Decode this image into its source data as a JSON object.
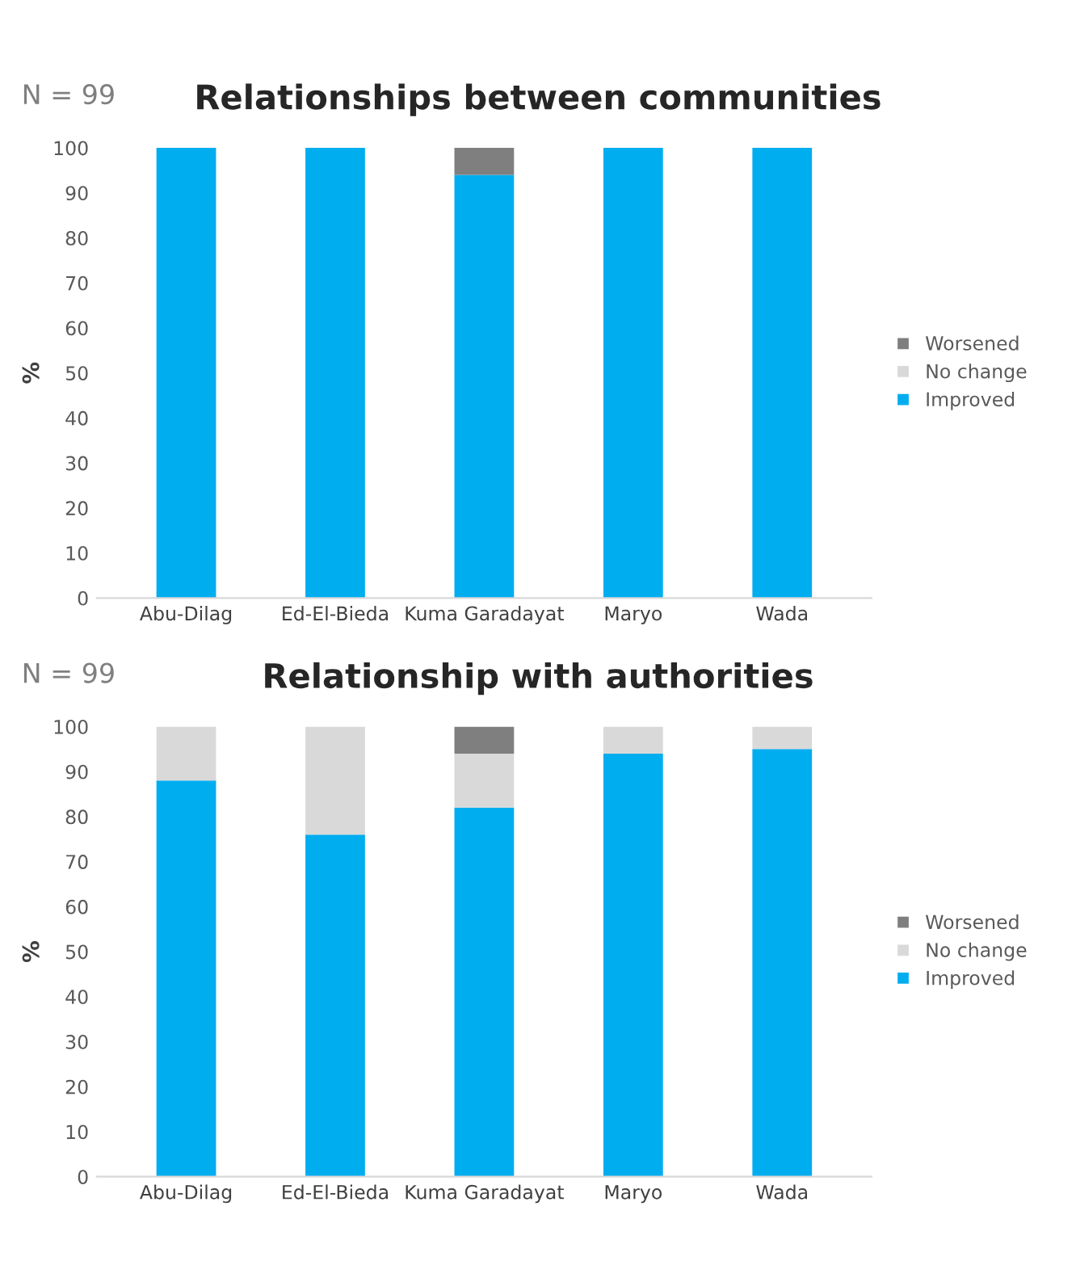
{
  "chart_data": [
    {
      "type": "bar",
      "title": "Relationships between communities",
      "ylabel": "%",
      "annotations": [
        "N = 99"
      ],
      "stacked": true,
      "legend": "right",
      "grid": false,
      "categories": [
        "Abu-Dilag",
        "Ed-El-Bieda",
        "Kuma Garadayat",
        "Maryo",
        "Wada"
      ],
      "ylim": [
        0,
        100
      ],
      "yticks": [
        0,
        10,
        20,
        30,
        40,
        50,
        60,
        70,
        80,
        90,
        100
      ],
      "series": [
        {
          "name": "Improved",
          "color": "#00adef",
          "values": [
            100,
            100,
            94,
            100,
            100
          ]
        },
        {
          "name": "No change",
          "color": "#d9d9d9",
          "values": [
            0,
            0,
            0,
            0,
            0
          ]
        },
        {
          "name": "Worsened",
          "color": "#7f7f7f",
          "values": [
            0,
            0,
            6,
            0,
            0
          ]
        }
      ]
    },
    {
      "type": "bar",
      "title": "Relationship with authorities",
      "ylabel": "%",
      "annotations": [
        "N = 99"
      ],
      "stacked": true,
      "legend": "right",
      "grid": false,
      "categories": [
        "Abu-Dilag",
        "Ed-El-Bieda",
        "Kuma Garadayat",
        "Maryo",
        "Wada"
      ],
      "ylim": [
        0,
        100
      ],
      "yticks": [
        0,
        10,
        20,
        30,
        40,
        50,
        60,
        70,
        80,
        90,
        100
      ],
      "series": [
        {
          "name": "Improved",
          "color": "#00adef",
          "values": [
            88,
            76,
            82,
            94,
            95
          ]
        },
        {
          "name": "No change",
          "color": "#d9d9d9",
          "values": [
            12,
            24,
            12,
            6,
            5
          ]
        },
        {
          "name": "Worsened",
          "color": "#7f7f7f",
          "values": [
            0,
            0,
            6,
            0,
            0
          ]
        }
      ]
    }
  ]
}
